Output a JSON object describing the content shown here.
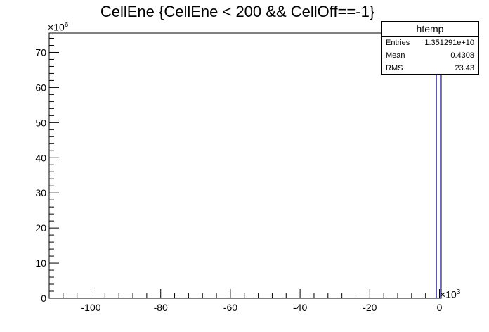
{
  "title": "CellEne {CellEne < 200 && CellOff==-1}",
  "stats": {
    "name": "htemp",
    "rows": [
      {
        "label": "Entries",
        "value": "1.351291e+10"
      },
      {
        "label": "Mean",
        "value": "0.4308"
      },
      {
        "label": "RMS",
        "value": "23.43"
      }
    ]
  },
  "y_multiplier": {
    "base": "×10",
    "exp": "6"
  },
  "x_multiplier": {
    "base": "×10",
    "exp": "3"
  },
  "chart_data": {
    "type": "bar",
    "title": "CellEne {CellEne < 200 && CellOff==-1}",
    "xlabel": "",
    "ylabel": "",
    "xlim": [
      -112,
      0.5
    ],
    "ylim": [
      0,
      75.5
    ],
    "x_ticks": [
      -100,
      -80,
      -60,
      -40,
      -20,
      0
    ],
    "y_ticks": [
      0,
      10,
      20,
      30,
      40,
      50,
      60,
      70
    ],
    "x_tick_labels": [
      "-100",
      "-80",
      "-60",
      "-40",
      "-20",
      "0"
    ],
    "y_tick_labels": [
      "0",
      "10",
      "20",
      "30",
      "40",
      "50",
      "60",
      "70"
    ],
    "bins": [
      {
        "x0": -0.9,
        "x1": 0.3,
        "value": 75.5
      }
    ],
    "line_color": "#000099",
    "grid": false,
    "legend": "top-right"
  }
}
